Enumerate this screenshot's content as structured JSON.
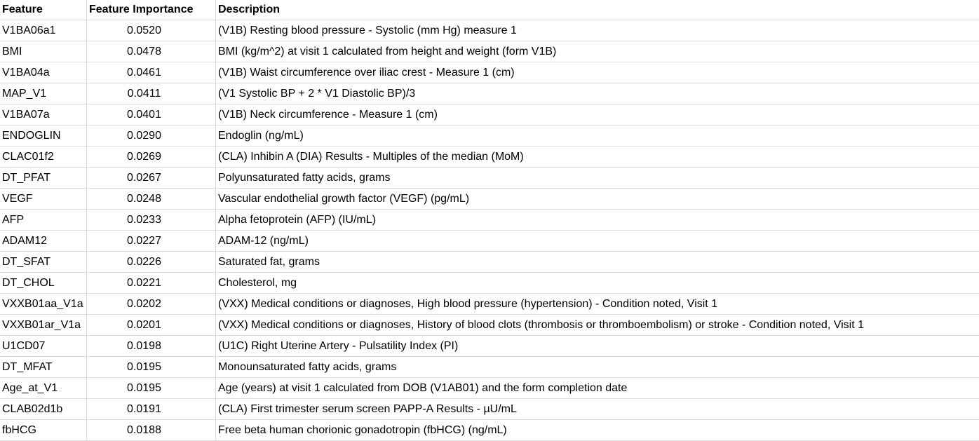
{
  "headers": {
    "feature": "Feature",
    "importance": "Feature Importance",
    "description": "Description"
  },
  "rows": [
    {
      "feature": "V1BA06a1",
      "importance": "0.0520",
      "description": "(V1B) Resting blood pressure - Systolic (mm Hg) measure 1"
    },
    {
      "feature": "BMI",
      "importance": "0.0478",
      "description": "BMI (kg/m^2) at visit 1 calculated from height and weight (form V1B)"
    },
    {
      "feature": "V1BA04a",
      "importance": "0.0461",
      "description": "(V1B) Waist circumference over iliac crest - Measure 1 (cm)"
    },
    {
      "feature": "MAP_V1",
      "importance": "0.0411",
      "description": "(V1 Systolic BP + 2 * V1 Diastolic BP)/3"
    },
    {
      "feature": "V1BA07a",
      "importance": "0.0401",
      "description": "(V1B) Neck circumference - Measure 1 (cm)"
    },
    {
      "feature": "ENDOGLIN",
      "importance": "0.0290",
      "description": "Endoglin (ng/mL)"
    },
    {
      "feature": "CLAC01f2",
      "importance": "0.0269",
      "description": "(CLA) Inhibin A (DIA) Results - Multiples of the median (MoM)"
    },
    {
      "feature": "DT_PFAT",
      "importance": "0.0267",
      "description": "Polyunsaturated fatty acids, grams"
    },
    {
      "feature": "VEGF",
      "importance": "0.0248",
      "description": "Vascular endothelial growth factor (VEGF) (pg/mL)"
    },
    {
      "feature": "AFP",
      "importance": "0.0233",
      "description": "Alpha fetoprotein (AFP) (IU/mL)"
    },
    {
      "feature": "ADAM12",
      "importance": "0.0227",
      "description": "ADAM-12 (ng/mL)"
    },
    {
      "feature": "DT_SFAT",
      "importance": "0.0226",
      "description": "Saturated fat, grams"
    },
    {
      "feature": "DT_CHOL",
      "importance": "0.0221",
      "description": "Cholesterol, mg"
    },
    {
      "feature": "VXXB01aa_V1a",
      "importance": "0.0202",
      "description": "(VXX) Medical conditions or diagnoses, High blood pressure (hypertension) - Condition noted, Visit 1"
    },
    {
      "feature": "VXXB01ar_V1a",
      "importance": "0.0201",
      "description": "(VXX) Medical conditions or diagnoses, History of blood clots (thrombosis or thromboembolism) or stroke - Condition noted, Visit 1"
    },
    {
      "feature": "U1CD07",
      "importance": "0.0198",
      "description": "(U1C) Right Uterine Artery - Pulsatility Index (PI)"
    },
    {
      "feature": "DT_MFAT",
      "importance": "0.0195",
      "description": "Monounsaturated fatty acids, grams"
    },
    {
      "feature": "Age_at_V1",
      "importance": "0.0195",
      "description": "Age (years) at visit 1 calculated from DOB (V1AB01) and the form completion date"
    },
    {
      "feature": "CLAB02d1b",
      "importance": "0.0191",
      "description": "(CLA) First trimester serum screen PAPP-A Results - µU/mL"
    },
    {
      "feature": "fbHCG",
      "importance": "0.0188",
      "description": "Free beta human chorionic gonadotropin (fbHCG) (ng/mL)"
    }
  ]
}
